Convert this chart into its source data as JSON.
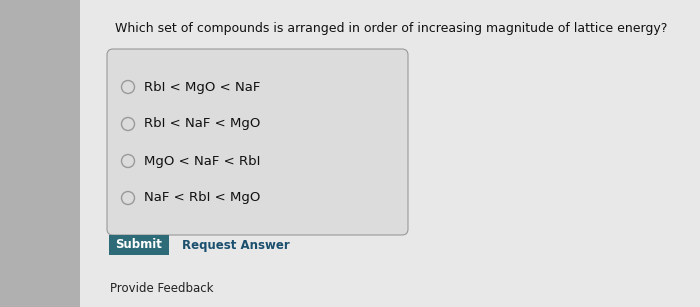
{
  "background_color": "#c8c8c8",
  "content_bg": "#e8e8e8",
  "left_strip_color": "#b0b0b0",
  "question": "Which set of compounds is arranged in order of increasing magnitude of lattice energy?",
  "options": [
    "RbI < MgO < NaF",
    "RbI < NaF < MgO",
    "MgO < NaF < RbI",
    "NaF < RbI < MgO"
  ],
  "box_bg": "#dcdcdc",
  "box_border": "#999999",
  "submit_bg": "#2d6b78",
  "submit_text": "Submit",
  "submit_text_color": "#ffffff",
  "request_answer_text": "Request Answer",
  "request_answer_color": "#1a4f6e",
  "provide_feedback_text": "Provide Feedback",
  "provide_feedback_color": "#222222",
  "question_color": "#111111",
  "option_color": "#111111",
  "circle_edge_color": "#999999",
  "question_fontsize": 9.0,
  "option_fontsize": 9.5,
  "button_fontsize": 8.5,
  "feedback_fontsize": 8.5,
  "fig_width": 7.0,
  "fig_height": 3.07,
  "dpi": 100
}
